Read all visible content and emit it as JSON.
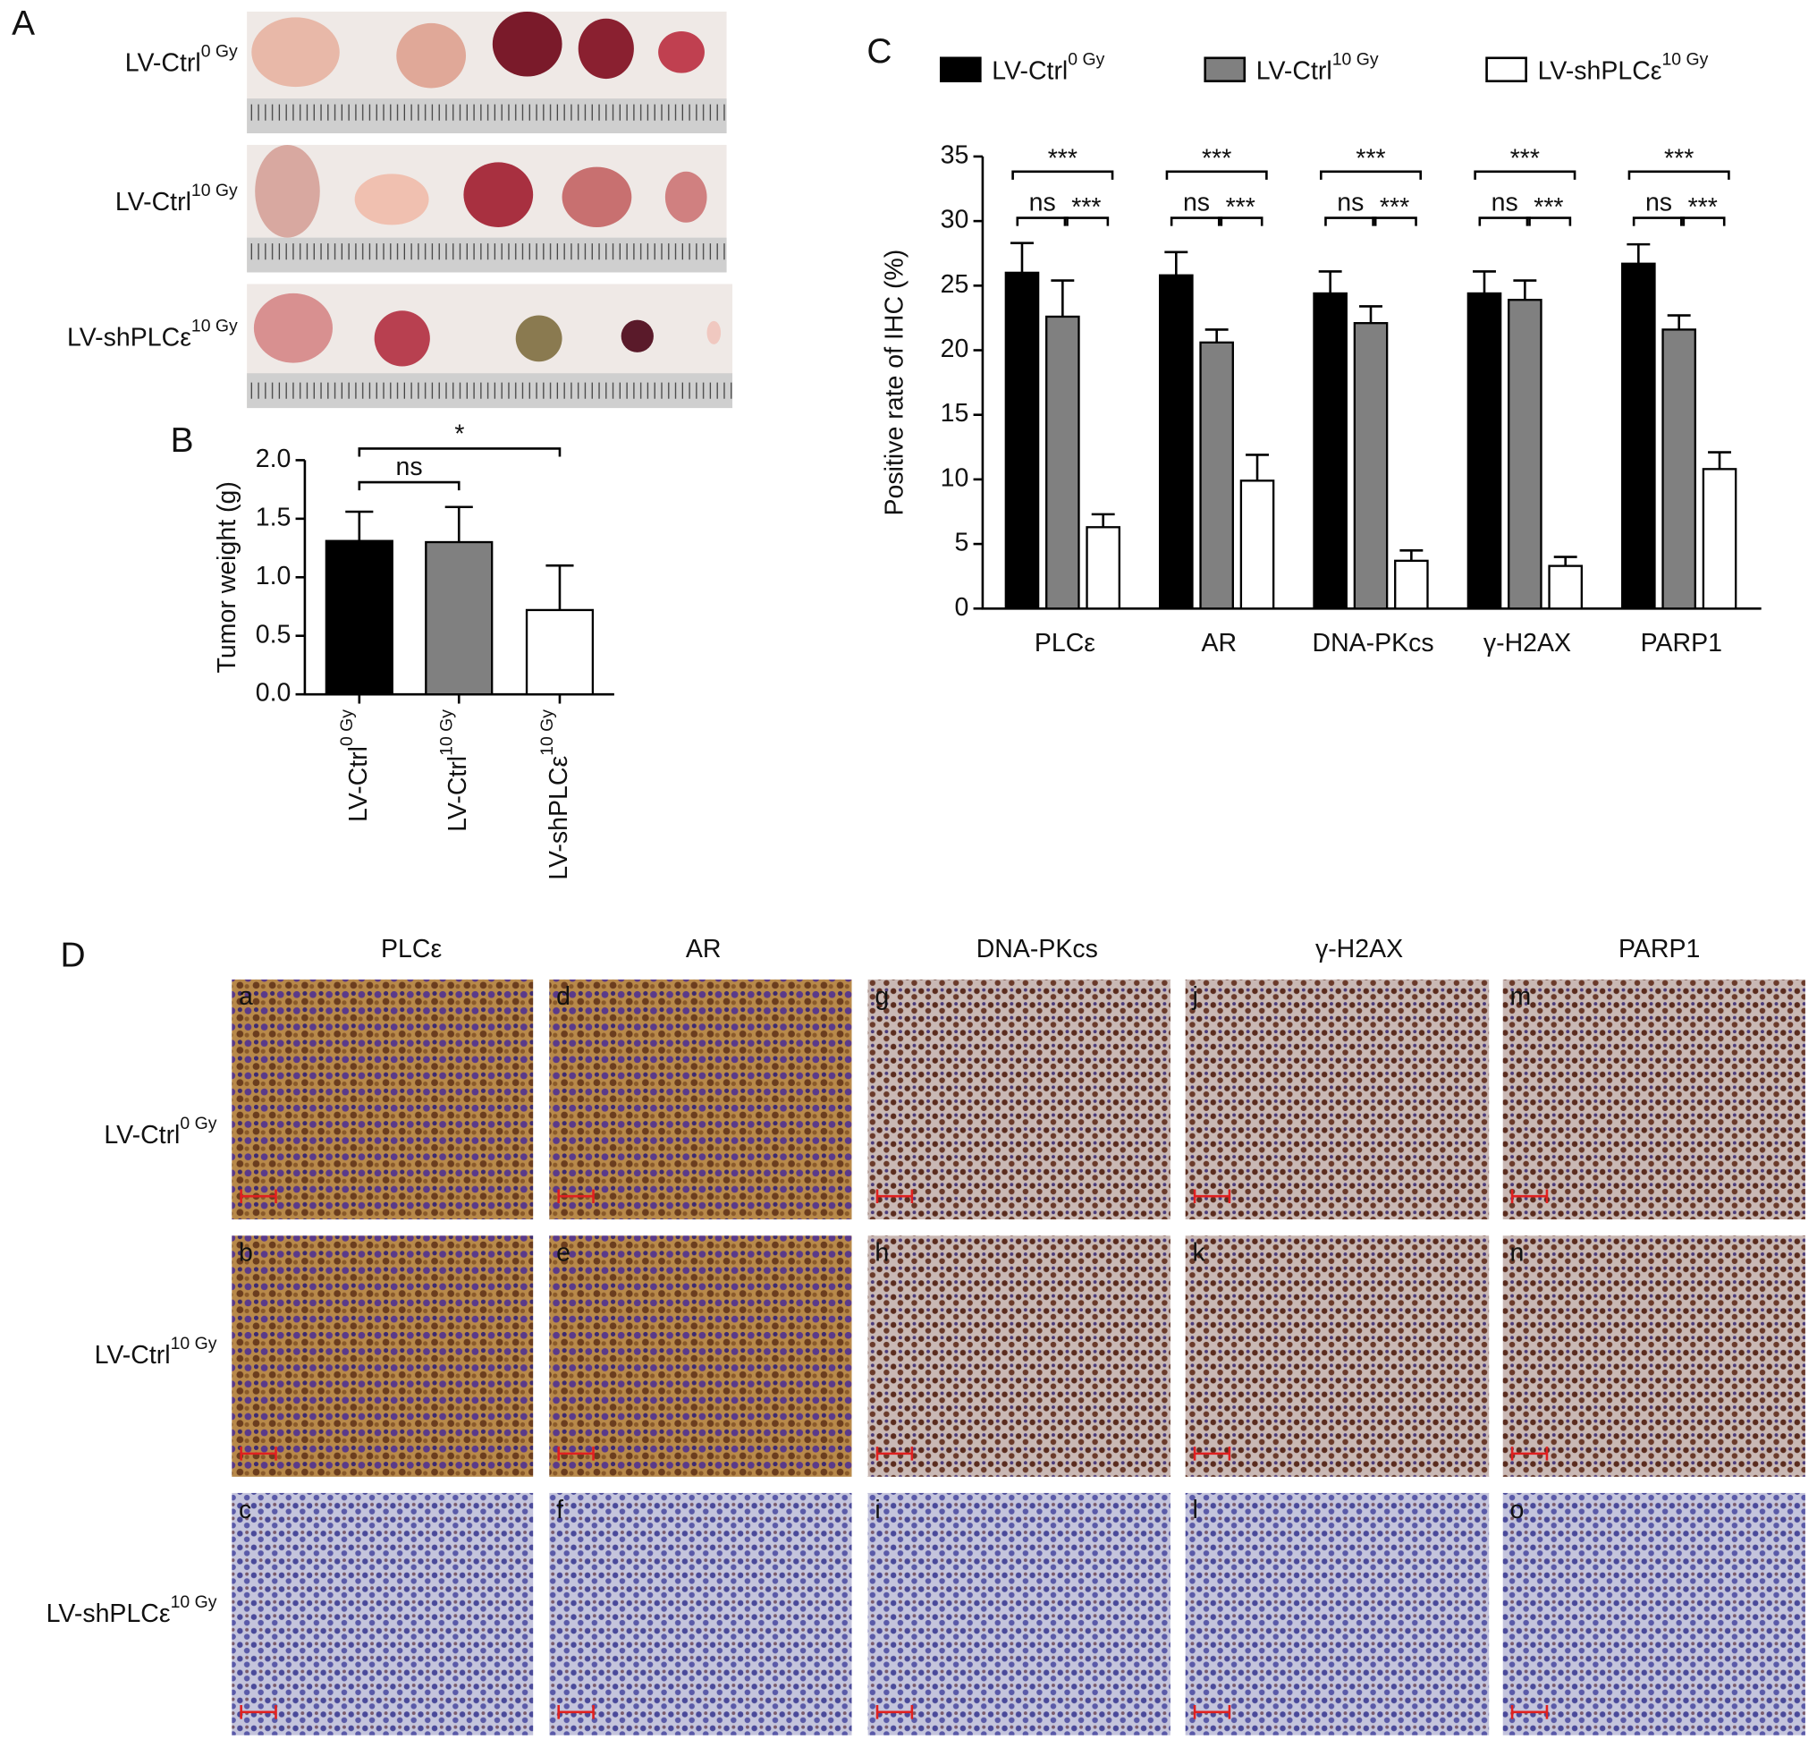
{
  "panel_labels": [
    "A",
    "B",
    "C",
    "D"
  ],
  "groups": [
    {
      "name": "LV-Ctrl",
      "superscript": "0 Gy"
    },
    {
      "name": "LV-Ctrl",
      "superscript": "10 Gy"
    },
    {
      "name": "LV-shPLCε",
      "superscript": "10 Gy"
    }
  ],
  "panel_d": {
    "columns": [
      "PLCε",
      "AR",
      "DNA-PKcs",
      "γ-H2AX",
      "PARP1"
    ],
    "tiles": [
      "a",
      "b",
      "c",
      "d",
      "e",
      "f",
      "g",
      "h",
      "i",
      "j",
      "k",
      "l",
      "m",
      "n",
      "o"
    ]
  },
  "chart_data": [
    {
      "type": "bar",
      "y_label": "Tumor weight (g)",
      "categories": [
        "LV-Ctrl",
        "LV-Ctrl",
        "LV-shPLCε"
      ],
      "category_superscripts": [
        "0 Gy",
        "10 Gy",
        "10 Gy"
      ],
      "values": [
        1.31,
        1.3,
        0.72
      ],
      "errors": [
        0.25,
        0.3,
        0.38
      ],
      "colors": [
        "#000000",
        "#808080",
        "#ffffff"
      ],
      "ylim": [
        0,
        2.0
      ],
      "yticks": [
        {
          "value": 0,
          "label": "0.0"
        },
        {
          "value": 0.5,
          "label": "0.5"
        },
        {
          "value": 1.0,
          "label": "1.0"
        },
        {
          "value": 1.5,
          "label": "1.5"
        },
        {
          "value": 2.0,
          "label": "2.0"
        }
      ],
      "significance": [
        "*",
        "ns"
      ]
    },
    {
      "type": "grouped_bar",
      "y_label": "Positive rate of IHC (%)",
      "categories": [
        "PLCε",
        "AR",
        "DNA-PKcs",
        "γ-H2AX",
        "PARP1"
      ],
      "series": [
        {
          "name": "LV-Ctrl",
          "superscript": "0 Gy",
          "color": "#000000",
          "values": [
            26.0,
            25.8,
            24.4,
            24.4,
            26.7
          ],
          "errors": [
            2.3,
            1.8,
            1.7,
            1.7,
            1.5
          ]
        },
        {
          "name": "LV-Ctrl",
          "superscript": "10 Gy",
          "color": "#808080",
          "values": [
            22.6,
            20.6,
            22.1,
            23.9,
            21.6
          ],
          "errors": [
            2.8,
            1.0,
            1.3,
            1.5,
            1.1
          ]
        },
        {
          "name": "LV-shPLCε",
          "superscript": "10 Gy",
          "color": "#ffffff",
          "values": [
            6.3,
            9.9,
            3.7,
            3.3,
            10.8
          ],
          "errors": [
            1.0,
            2.0,
            0.8,
            0.7,
            1.3
          ]
        }
      ],
      "ylim": [
        0,
        35
      ],
      "yticks": [
        0,
        5,
        10,
        15,
        20,
        25,
        30,
        35
      ],
      "significance": [
        [
          "***",
          "ns",
          "***"
        ],
        [
          "***",
          "ns",
          "***"
        ],
        [
          "***",
          "ns",
          "***"
        ],
        [
          "***",
          "ns",
          "***"
        ],
        [
          "***",
          "ns",
          "***"
        ]
      ]
    }
  ]
}
